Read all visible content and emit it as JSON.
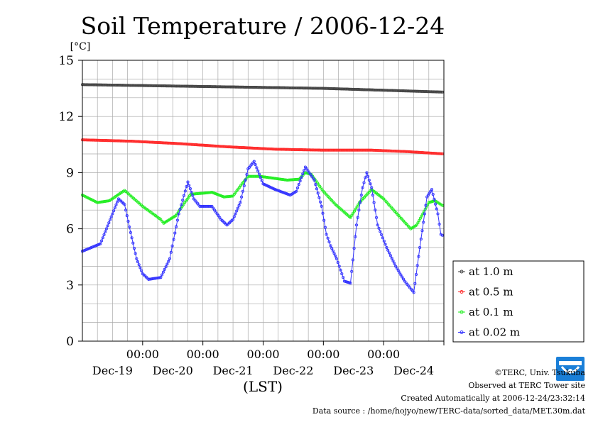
{
  "chart_data": {
    "type": "line",
    "title": "Soil Temperature / 2006-12-24",
    "ylabel": "[°C]",
    "xlabel": "(LST)",
    "ylim": [
      0,
      15
    ],
    "yticks": [
      0,
      3,
      6,
      9,
      12,
      15
    ],
    "xlim": [
      0,
      6
    ],
    "x_unit": "days from Dec-18 12:00",
    "xticks": [
      {
        "x": 1,
        "time": "00:00",
        "date": "Dec-19"
      },
      {
        "x": 2,
        "time": "00:00",
        "date": "Dec-20"
      },
      {
        "x": 3,
        "time": "00:00",
        "date": "Dec-21"
      },
      {
        "x": 4,
        "time": "00:00",
        "date": "Dec-22"
      },
      {
        "x": 5,
        "time": "00:00",
        "date": "Dec-23"
      },
      {
        "x": 6,
        "time": "00:00",
        "date": "Dec-24"
      }
    ],
    "grid": true,
    "legend_position": "right",
    "series": [
      {
        "name": "at 1.0 m",
        "color": "#444444",
        "points": [
          [
            0,
            13.7
          ],
          [
            1,
            13.65
          ],
          [
            2,
            13.6
          ],
          [
            3,
            13.55
          ],
          [
            4,
            13.5
          ],
          [
            5,
            13.4
          ],
          [
            6,
            13.3
          ]
        ]
      },
      {
        "name": "at 0.5 m",
        "color": "#ff2a2a",
        "points": [
          [
            0,
            10.75
          ],
          [
            0.8,
            10.68
          ],
          [
            1.6,
            10.55
          ],
          [
            2.4,
            10.38
          ],
          [
            3.2,
            10.25
          ],
          [
            4,
            10.2
          ],
          [
            4.8,
            10.2
          ],
          [
            5.4,
            10.12
          ],
          [
            6,
            10.0
          ]
        ]
      },
      {
        "name": "at 0.1 m",
        "color": "#22ee22",
        "points": [
          [
            0,
            7.8
          ],
          [
            0.25,
            7.4
          ],
          [
            0.45,
            7.5
          ],
          [
            0.7,
            8.05
          ],
          [
            1.0,
            7.2
          ],
          [
            1.3,
            6.5
          ],
          [
            1.35,
            6.3
          ],
          [
            1.55,
            6.7
          ],
          [
            1.7,
            7.4
          ],
          [
            1.8,
            7.85
          ],
          [
            2.0,
            7.9
          ],
          [
            2.15,
            7.95
          ],
          [
            2.35,
            7.7
          ],
          [
            2.5,
            7.75
          ],
          [
            2.65,
            8.4
          ],
          [
            2.75,
            8.8
          ],
          [
            2.95,
            8.8
          ],
          [
            3.4,
            8.6
          ],
          [
            3.6,
            8.65
          ],
          [
            3.7,
            9.0
          ],
          [
            3.8,
            8.9
          ],
          [
            4.0,
            8.0
          ],
          [
            4.2,
            7.3
          ],
          [
            4.45,
            6.6
          ],
          [
            4.6,
            7.4
          ],
          [
            4.8,
            8.1
          ],
          [
            5.0,
            7.6
          ],
          [
            5.25,
            6.7
          ],
          [
            5.45,
            6.0
          ],
          [
            5.55,
            6.2
          ],
          [
            5.75,
            7.4
          ],
          [
            5.85,
            7.5
          ],
          [
            6,
            7.2
          ]
        ]
      },
      {
        "name": "at 0.02 m",
        "color": "#3333ff",
        "points": [
          [
            0,
            4.8
          ],
          [
            0.3,
            5.2
          ],
          [
            0.5,
            6.8
          ],
          [
            0.6,
            7.6
          ],
          [
            0.7,
            7.3
          ],
          [
            0.8,
            5.8
          ],
          [
            0.9,
            4.4
          ],
          [
            1.0,
            3.6
          ],
          [
            1.1,
            3.3
          ],
          [
            1.3,
            3.4
          ],
          [
            1.45,
            4.4
          ],
          [
            1.6,
            6.8
          ],
          [
            1.75,
            8.5
          ],
          [
            1.85,
            7.6
          ],
          [
            1.95,
            7.2
          ],
          [
            2.15,
            7.2
          ],
          [
            2.3,
            6.5
          ],
          [
            2.4,
            6.2
          ],
          [
            2.5,
            6.5
          ],
          [
            2.62,
            7.4
          ],
          [
            2.75,
            9.2
          ],
          [
            2.85,
            9.6
          ],
          [
            3.0,
            8.4
          ],
          [
            3.2,
            8.1
          ],
          [
            3.45,
            7.8
          ],
          [
            3.55,
            8.0
          ],
          [
            3.7,
            9.3
          ],
          [
            3.85,
            8.6
          ],
          [
            3.97,
            7.2
          ],
          [
            4.05,
            5.7
          ],
          [
            4.12,
            5.1
          ],
          [
            4.22,
            4.4
          ],
          [
            4.35,
            3.2
          ],
          [
            4.45,
            3.1
          ],
          [
            4.55,
            6.2
          ],
          [
            4.65,
            8.2
          ],
          [
            4.72,
            9.0
          ],
          [
            4.8,
            8.2
          ],
          [
            4.9,
            6.2
          ],
          [
            5.05,
            5.0
          ],
          [
            5.2,
            4.0
          ],
          [
            5.35,
            3.2
          ],
          [
            5.5,
            2.6
          ],
          [
            5.6,
            5.0
          ],
          [
            5.72,
            7.7
          ],
          [
            5.8,
            8.1
          ],
          [
            5.9,
            6.8
          ],
          [
            5.95,
            5.7
          ],
          [
            6.0,
            5.6
          ]
        ]
      }
    ]
  },
  "footer": {
    "copyright": "©TERC, Univ. Tsukuba",
    "observed": "Observed at TERC Tower site",
    "created": "Created Automatically at 2006-12-24/23:32:14",
    "source": "Data source : /home/hojyo/new/TERC-data/sorted_data/MET.30m.dat"
  },
  "logo": {
    "text": "TERC",
    "color": "#1a7fd8"
  }
}
